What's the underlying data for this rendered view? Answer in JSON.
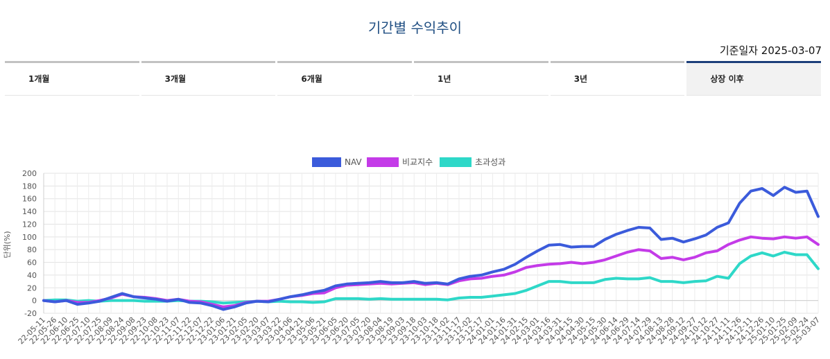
{
  "page": {
    "title": "기간별 수익추이",
    "reference_date": "기준일자 2025-03-07"
  },
  "tabs": [
    {
      "label": "1개월",
      "active": false
    },
    {
      "label": "3개월",
      "active": false
    },
    {
      "label": "6개월",
      "active": false
    },
    {
      "label": "1년",
      "active": false
    },
    {
      "label": "3년",
      "active": false
    },
    {
      "label": "상장 이후",
      "active": true
    }
  ],
  "chart_data": {
    "type": "line",
    "title": "",
    "ylabel": "단위(%)",
    "xlabel": "",
    "ylim": [
      -20,
      200
    ],
    "yticks": [
      -20,
      0,
      20,
      40,
      60,
      80,
      100,
      120,
      140,
      160,
      180,
      200
    ],
    "grid": true,
    "legend_position": "top",
    "x": [
      "22-05-11",
      "22-05-26",
      "22-06-10",
      "22-06-25",
      "22-07-10",
      "22-07-25",
      "22-08-09",
      "22-08-24",
      "22-09-08",
      "22-09-23",
      "22-10-08",
      "22-10-23",
      "22-11-07",
      "22-11-22",
      "22-12-07",
      "22-12-22",
      "23-01-06",
      "23-01-21",
      "23-02-05",
      "23-02-20",
      "23-03-07",
      "23-03-22",
      "23-04-06",
      "23-04-21",
      "23-05-06",
      "23-05-21",
      "23-06-05",
      "23-06-20",
      "23-07-05",
      "23-07-20",
      "23-08-04",
      "23-08-19",
      "23-09-03",
      "23-09-18",
      "23-10-03",
      "23-10-18",
      "23-11-02",
      "23-11-17",
      "23-12-02",
      "23-12-17",
      "24-01-01",
      "24-01-16",
      "24-01-31",
      "24-02-15",
      "24-03-01",
      "24-03-16",
      "24-03-31",
      "24-04-15",
      "24-04-30",
      "24-05-15",
      "24-05-30",
      "24-06-14",
      "24-06-29",
      "24-07-14",
      "24-07-29",
      "24-08-13",
      "24-08-28",
      "24-09-12",
      "24-09-27",
      "24-10-12",
      "24-10-27",
      "24-11-11",
      "24-11-26",
      "24-12-11",
      "24-12-26",
      "25-01-10",
      "25-01-25",
      "25-02-09",
      "25-02-24",
      "25-03-07"
    ],
    "series": [
      {
        "name": "NAV",
        "color": "#3b5bdb",
        "values": [
          0,
          -2,
          0,
          -6,
          -4,
          -1,
          5,
          11,
          6,
          4,
          2,
          -1,
          2,
          -3,
          -4,
          -8,
          -14,
          -10,
          -4,
          -1,
          -2,
          2,
          6,
          9,
          13,
          16,
          23,
          26,
          27,
          28,
          30,
          28,
          28,
          30,
          27,
          28,
          26,
          34,
          38,
          40,
          45,
          49,
          57,
          68,
          78,
          87,
          88,
          84,
          85,
          85,
          96,
          104,
          110,
          115,
          114,
          96,
          98,
          92,
          97,
          103,
          115,
          122,
          153,
          172,
          176,
          165,
          178,
          170,
          172,
          132
        ]
      },
      {
        "name": "비교지수",
        "color": "#c43be8",
        "values": [
          0,
          -2,
          0,
          -3,
          -3,
          0,
          4,
          10,
          6,
          5,
          3,
          0,
          2,
          -1,
          -2,
          -6,
          -10,
          -8,
          -3,
          -1,
          -1,
          2,
          6,
          8,
          11,
          12,
          20,
          24,
          25,
          26,
          27,
          26,
          27,
          28,
          25,
          27,
          25,
          31,
          34,
          35,
          38,
          40,
          45,
          52,
          55,
          57,
          58,
          60,
          58,
          60,
          64,
          70,
          76,
          80,
          78,
          66,
          68,
          64,
          68,
          75,
          78,
          88,
          95,
          100,
          98,
          97,
          100,
          98,
          100,
          88
        ]
      },
      {
        "name": "초과성과",
        "color": "#2ed8c8",
        "values": [
          0,
          1,
          1,
          -1,
          0,
          -1,
          0,
          0,
          0,
          -1,
          -1,
          -1,
          0,
          -1,
          -1,
          -2,
          -4,
          -3,
          -2,
          -1,
          -2,
          -1,
          -2,
          -2,
          -3,
          -2,
          3,
          3,
          3,
          2,
          3,
          2,
          2,
          2,
          2,
          2,
          1,
          4,
          5,
          5,
          7,
          9,
          11,
          16,
          23,
          30,
          30,
          28,
          28,
          28,
          33,
          35,
          34,
          34,
          36,
          30,
          30,
          28,
          30,
          31,
          38,
          35,
          58,
          70,
          75,
          70,
          76,
          72,
          72,
          50
        ]
      }
    ]
  }
}
